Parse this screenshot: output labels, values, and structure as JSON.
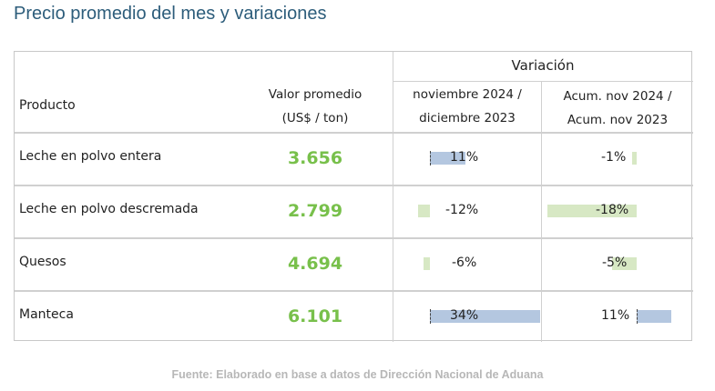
{
  "title": "Precio promedio del mes y variaciones",
  "table": {
    "group_header": "Variación",
    "headers": {
      "producto": "Producto",
      "valor_l1": "Valor promedio",
      "valor_l2": "(US$ / ton)",
      "var1_l1": "noviembre 2024 /",
      "var1_l2": "diciembre 2023",
      "var2_l1": "Acum. nov 2024 /",
      "var2_l2": "Acum. nov 2023"
    },
    "rows": [
      {
        "producto": "Leche en polvo entera",
        "valor": "3.656",
        "var1": "11%",
        "var1_value": 11,
        "var2": "-1%",
        "var2_value": -1
      },
      {
        "producto": "Leche en polvo descremada",
        "valor": "2.799",
        "var1": "-12%",
        "var1_value": -12,
        "var2": "-18%",
        "var2_value": -18
      },
      {
        "producto": "Quesos",
        "valor": "4.694",
        "var1": "-6%",
        "var1_value": -6,
        "var2": "-5%",
        "var2_value": -5
      },
      {
        "producto": "Manteca",
        "valor": "6.101",
        "var1": "34%",
        "var1_value": 34,
        "var2": "11%",
        "var2_value": 11
      }
    ]
  },
  "colors": {
    "title": "#2d5d7b",
    "value": "#78c04b",
    "bar_positive": "#b4c7e0",
    "bar_negative": "#d7e8c4",
    "source": "#b7b7b7"
  },
  "source": "Fuente: Elaborado en base a datos de Dirección Nacional de Aduana"
}
